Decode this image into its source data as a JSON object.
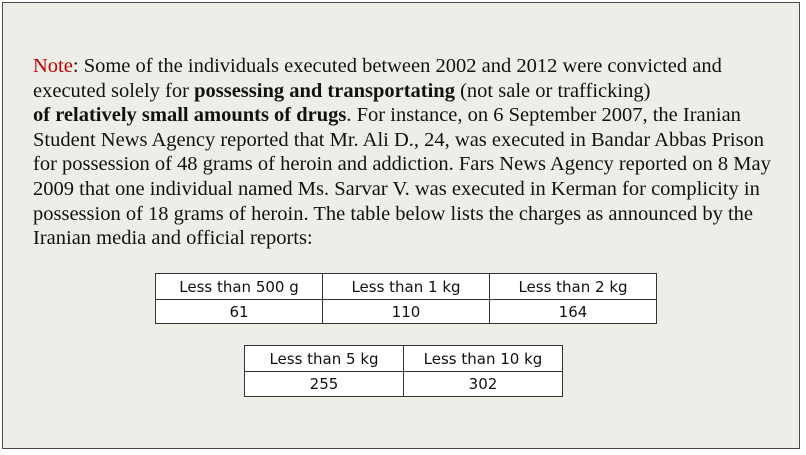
{
  "note": {
    "lead": "Note",
    "sep": ": ",
    "text1": "Some of the individuals executed between 2002 and 2012 were convicted and executed solely for ",
    "bold1": "possessing and transportating",
    "text2": " (not sale or trafficking) ",
    "bold2": "of relatively small amounts of drugs",
    "text3": ". For instance, on 6 September 2007, the Iranian Student News Agency reported that Mr. Ali D., 24, was executed in Bandar Abbas Prison for possession of 48 grams of heroin and addiction. Fars News Agency reported on 8 May 2009 that one individual named Ms. Sarvar V. was executed in Kerman for complicity in possession of 18 grams of heroin.  The table below lists the charges as announced by the Iranian media and official reports:"
  },
  "tables": [
    {
      "headers": [
        "Less than 500 g",
        "Less than 1 kg",
        "Less than 2 kg"
      ],
      "values": [
        "61",
        "110",
        "164"
      ]
    },
    {
      "headers": [
        "Less than 5 kg",
        "Less than 10 kg"
      ],
      "values": [
        "255",
        "302"
      ]
    }
  ],
  "colors": {
    "background": "#efede8",
    "note_lead": "#c00000",
    "text": "#111111"
  }
}
